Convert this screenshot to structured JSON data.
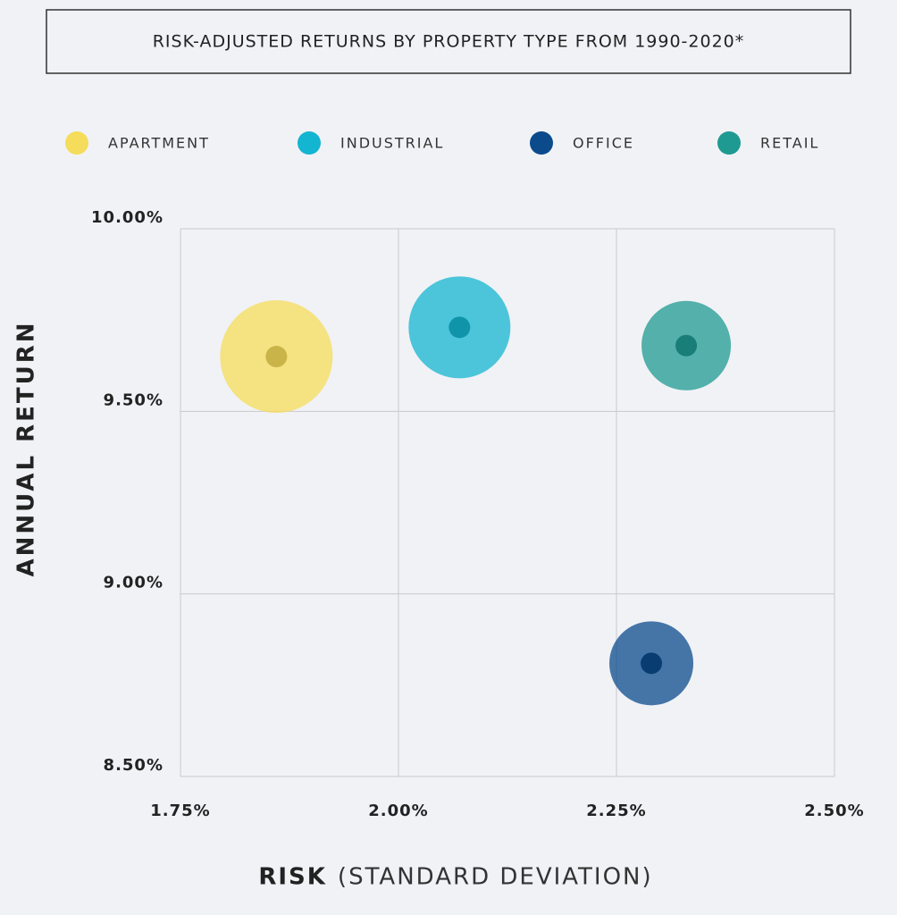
{
  "chart_data": {
    "type": "bubble",
    "title": "RISK-ADJUSTED RETURNS BY PROPERTY TYPE FROM 1990-2020*",
    "y_label": "ANNUAL RETURN",
    "x_label": "RISK",
    "x_label_note": "(STANDARD DEVIATION)",
    "xlim": [
      1.75,
      2.5
    ],
    "xticks": [
      {
        "value": 1.75,
        "label": "1.75%"
      },
      {
        "value": 2.0,
        "label": "2.00%"
      },
      {
        "value": 2.25,
        "label": "2.25%"
      },
      {
        "value": 2.5,
        "label": "2.50%"
      }
    ],
    "ylim": [
      8.5,
      10.0
    ],
    "yticks": [
      {
        "value": 8.5,
        "label": "8.50%"
      },
      {
        "value": 9.0,
        "label": "9.00%"
      },
      {
        "value": 9.5,
        "label": "9.50%"
      },
      {
        "value": 10.0,
        "label": "10.00%"
      }
    ],
    "grid": true,
    "legend": "top",
    "series": [
      {
        "name": "APARTMENT",
        "color": "#f5dc5a",
        "x": [
          1.86
        ],
        "values": [
          9.65
        ],
        "size": [
          63
        ]
      },
      {
        "name": "INDUSTRIAL",
        "color": "#14b5d0",
        "x": [
          2.07
        ],
        "values": [
          9.73
        ],
        "size": [
          57
        ]
      },
      {
        "name": "OFFICE",
        "color": "#0b4b8c",
        "x": [
          2.29
        ],
        "values": [
          8.81
        ],
        "size": [
          47
        ]
      },
      {
        "name": "RETAIL",
        "color": "#1e9a92",
        "x": [
          2.33
        ],
        "values": [
          9.68
        ],
        "size": [
          50
        ]
      }
    ]
  }
}
